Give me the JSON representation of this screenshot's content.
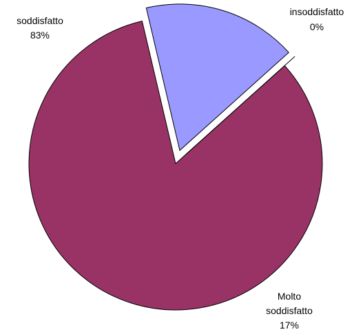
{
  "chart_data": {
    "type": "pie",
    "slices": [
      {
        "label": "soddisfatto",
        "value_label": "83%",
        "value": 83,
        "color": "#993366",
        "exploded": false
      },
      {
        "label": "Molto soddisfatto",
        "value_label": "17%",
        "value": 17,
        "color": "#9999ff",
        "exploded": true
      },
      {
        "label": "insoddisfatto",
        "value_label": "0%",
        "value": 0,
        "color": "#ffffcc",
        "exploded": true
      }
    ]
  },
  "labels": {
    "soddisfatto": {
      "name": "soddisfatto",
      "value": "83%"
    },
    "molto": {
      "line1": "Molto",
      "line2": "soddisfatto",
      "value": "17%"
    },
    "insoddisfatto": {
      "name": "insoddisfatto",
      "value": "0%"
    }
  }
}
